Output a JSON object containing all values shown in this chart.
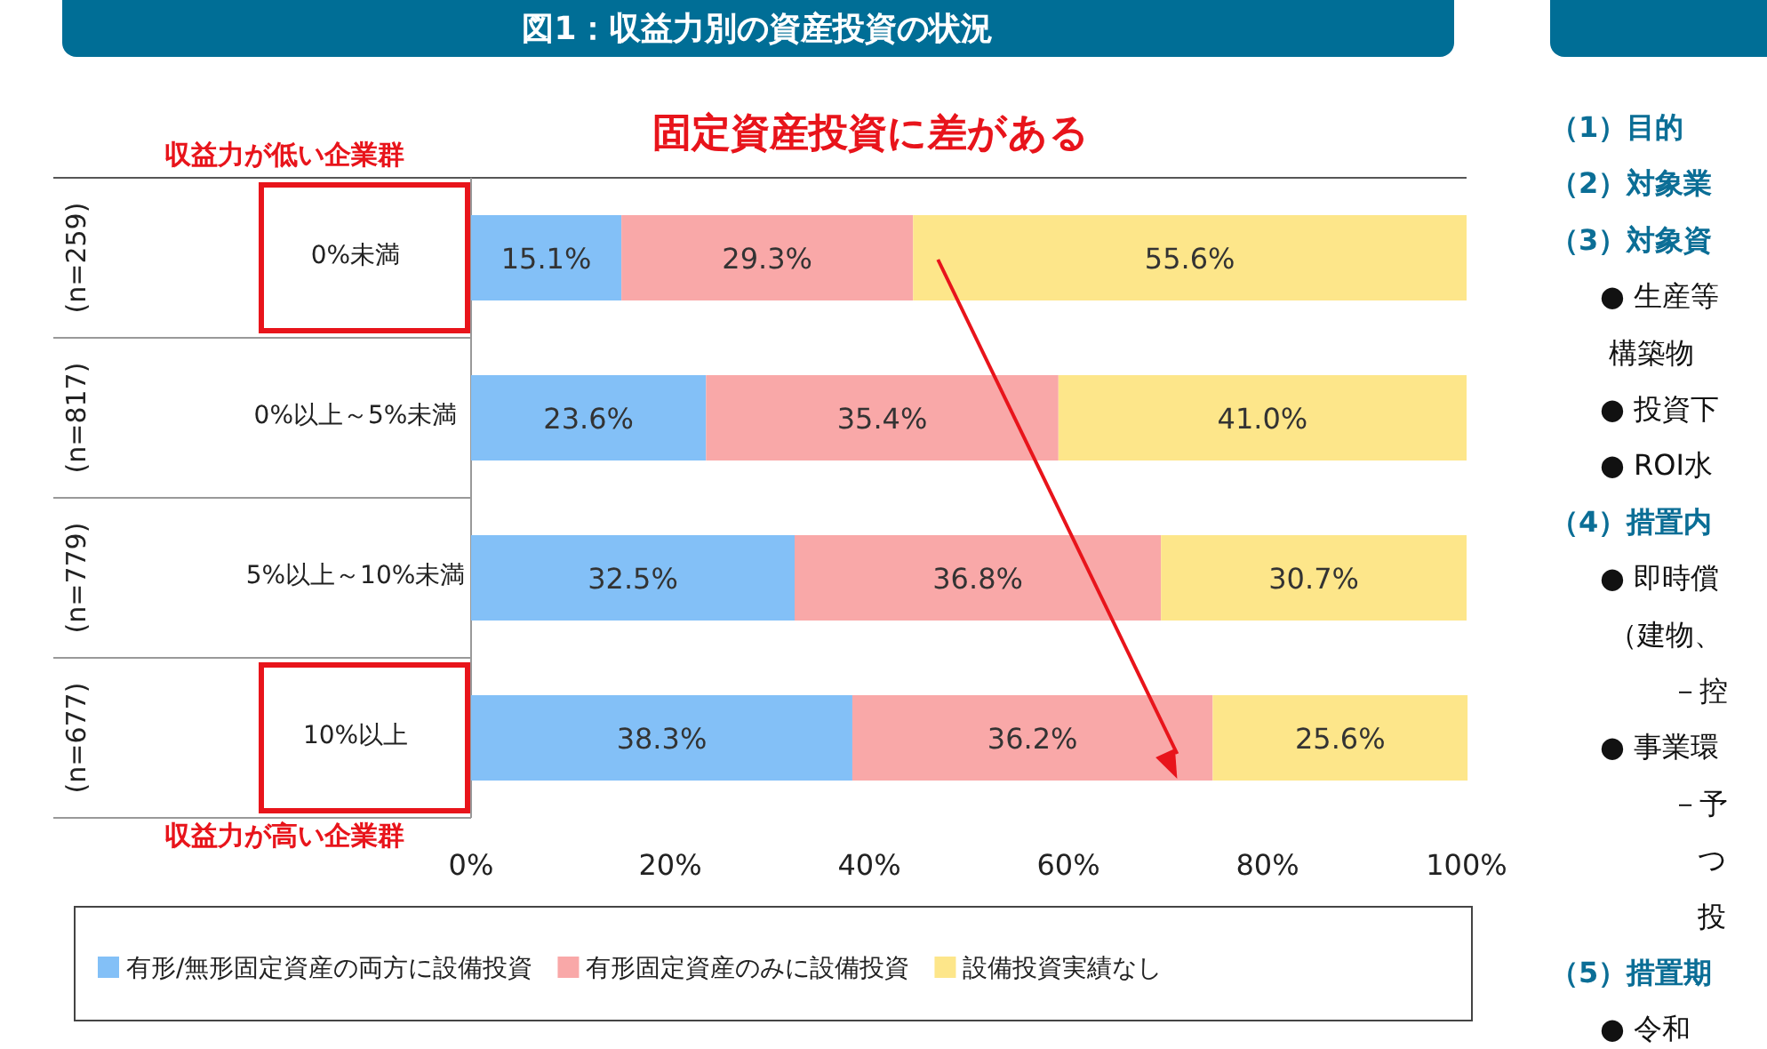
{
  "chart_data": [
    {
      "type": "bar",
      "title": "図1：収益力別の資産投資の状況",
      "subtitle": "固定資産投資に差がある",
      "orientation": "horizontal",
      "stacked": true,
      "categories": [
        "0%未満",
        "0%以上～5%未満",
        "5%以上～10%未満",
        "10%以上"
      ],
      "series": [
        {
          "name": "有形/無形固定資産の両方に設備投資",
          "color": "#83c0f7",
          "values": [
            15.1,
            23.6,
            32.5,
            38.3
          ],
          "value_labels": [
            "15.1%",
            "23.6%",
            "32.5%",
            "38.3%"
          ]
        },
        {
          "name": "有形固定資産のみに設備投資",
          "color": "#f9a8a8",
          "values": [
            29.3,
            35.4,
            36.8,
            36.2
          ],
          "value_labels": [
            "29.3%",
            "35.4%",
            "36.8%",
            "36.2%"
          ]
        },
        {
          "name": "設備投資実績なし",
          "color": "#fde68a",
          "values": [
            55.6,
            41.0,
            30.7,
            25.6
          ],
          "value_labels": [
            "55.6%",
            "41.0%",
            "30.7%",
            "25.6%"
          ]
        }
      ],
      "xlim": [
        0,
        100
      ],
      "xticks": [
        {
          "value": 0,
          "label": "0%"
        },
        {
          "value": 20,
          "label": "20%"
        },
        {
          "value": 40,
          "label": "40%"
        },
        {
          "value": 60,
          "label": "60%"
        },
        {
          "value": 80,
          "label": "80%"
        },
        {
          "value": 100,
          "label": "100%"
        }
      ],
      "legend": "bottom",
      "grid": false,
      "annotations": [
        "収益力が低い企業群",
        "収益力が高い企業群",
        "(n=259)",
        "(n=817)",
        "(n=779)",
        "(n=677)"
      ]
    },
    {
      "type": "other",
      "annotations": [
        "（1）目的",
        "（2）対象業",
        "（3）対象資",
        "● 生産等",
        "構築物",
        "● 投資下",
        "● ROI水",
        "（4）措置内",
        "● 即時償",
        "（建物、",
        "－控",
        "● 事業環",
        "－予",
        "つ",
        "投",
        "（5）措置期",
        "● 令和"
      ]
    }
  ]
}
